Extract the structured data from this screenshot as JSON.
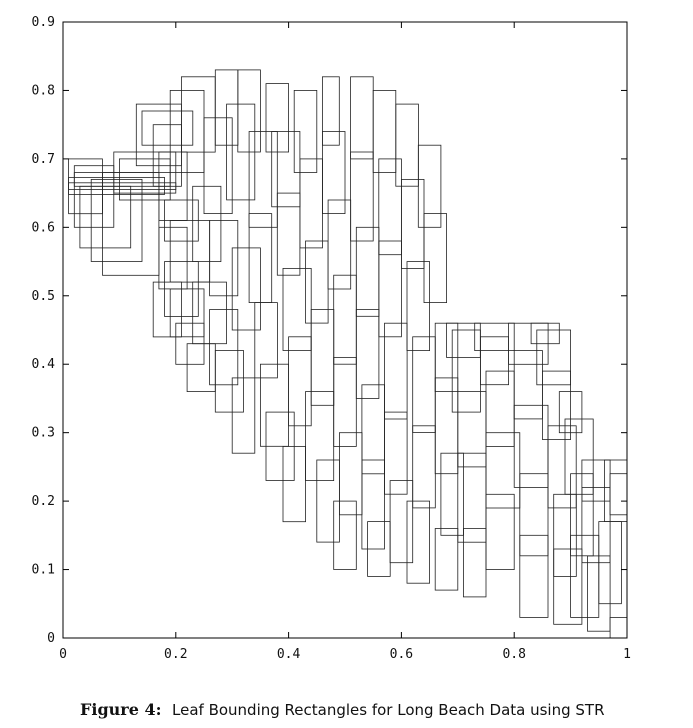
{
  "chart_data": {
    "type": "rectangles",
    "xlim": [
      0,
      1
    ],
    "ylim": [
      0,
      0.9
    ],
    "x_ticks": [
      "0",
      "0.2",
      "0.4",
      "0.6",
      "0.8",
      "1"
    ],
    "y_ticks": [
      "0",
      "0.1",
      "0.2",
      "0.3",
      "0.4",
      "0.5",
      "0.6",
      "0.7",
      "0.8",
      "0.9"
    ],
    "grid": false,
    "caption_label": "Figure 4:",
    "caption_text": "Leaf Bounding Rectangles for Long Beach Data using STR",
    "rect_fields": [
      "x0",
      "y0",
      "x1",
      "y1"
    ],
    "rectangles": [
      [
        0.01,
        0.62,
        0.07,
        0.7
      ],
      [
        0.02,
        0.6,
        0.09,
        0.69
      ],
      [
        0.03,
        0.57,
        0.12,
        0.66
      ],
      [
        0.05,
        0.55,
        0.14,
        0.67
      ],
      [
        0.07,
        0.53,
        0.17,
        0.68
      ],
      [
        0.09,
        0.65,
        0.2,
        0.71
      ],
      [
        0.1,
        0.64,
        0.19,
        0.7
      ],
      [
        0.01,
        0.655,
        0.2,
        0.665
      ],
      [
        0.01,
        0.648,
        0.18,
        0.673
      ],
      [
        0.02,
        0.66,
        0.19,
        0.68
      ],
      [
        0.13,
        0.69,
        0.21,
        0.78
      ],
      [
        0.14,
        0.72,
        0.23,
        0.77
      ],
      [
        0.16,
        0.66,
        0.21,
        0.75
      ],
      [
        0.17,
        0.61,
        0.22,
        0.71
      ],
      [
        0.19,
        0.68,
        0.25,
        0.8
      ],
      [
        0.21,
        0.71,
        0.27,
        0.82
      ],
      [
        0.18,
        0.58,
        0.24,
        0.64
      ],
      [
        0.17,
        0.51,
        0.22,
        0.6
      ],
      [
        0.18,
        0.47,
        0.24,
        0.55
      ],
      [
        0.19,
        0.44,
        0.25,
        0.51
      ],
      [
        0.2,
        0.4,
        0.25,
        0.46
      ],
      [
        0.22,
        0.36,
        0.27,
        0.43
      ],
      [
        0.16,
        0.44,
        0.21,
        0.52
      ],
      [
        0.19,
        0.52,
        0.26,
        0.61
      ],
      [
        0.23,
        0.55,
        0.28,
        0.66
      ],
      [
        0.23,
        0.43,
        0.29,
        0.52
      ],
      [
        0.26,
        0.37,
        0.31,
        0.48
      ],
      [
        0.25,
        0.62,
        0.3,
        0.76
      ],
      [
        0.27,
        0.72,
        0.31,
        0.83
      ],
      [
        0.29,
        0.64,
        0.34,
        0.78
      ],
      [
        0.26,
        0.5,
        0.31,
        0.61
      ],
      [
        0.3,
        0.45,
        0.35,
        0.57
      ],
      [
        0.27,
        0.33,
        0.32,
        0.42
      ],
      [
        0.3,
        0.27,
        0.34,
        0.38
      ],
      [
        0.31,
        0.71,
        0.35,
        0.83
      ],
      [
        0.33,
        0.6,
        0.38,
        0.74
      ],
      [
        0.33,
        0.49,
        0.37,
        0.62
      ],
      [
        0.34,
        0.38,
        0.38,
        0.49
      ],
      [
        0.35,
        0.28,
        0.4,
        0.4
      ],
      [
        0.36,
        0.23,
        0.41,
        0.33
      ],
      [
        0.36,
        0.71,
        0.4,
        0.81
      ],
      [
        0.37,
        0.63,
        0.42,
        0.74
      ],
      [
        0.38,
        0.53,
        0.42,
        0.65
      ],
      [
        0.39,
        0.42,
        0.44,
        0.54
      ],
      [
        0.4,
        0.31,
        0.44,
        0.44
      ],
      [
        0.39,
        0.17,
        0.43,
        0.28
      ],
      [
        0.41,
        0.68,
        0.45,
        0.8
      ],
      [
        0.42,
        0.57,
        0.46,
        0.7
      ],
      [
        0.43,
        0.46,
        0.47,
        0.58
      ],
      [
        0.44,
        0.34,
        0.48,
        0.48
      ],
      [
        0.43,
        0.23,
        0.48,
        0.36
      ],
      [
        0.45,
        0.14,
        0.49,
        0.26
      ],
      [
        0.46,
        0.72,
        0.49,
        0.82
      ],
      [
        0.46,
        0.62,
        0.5,
        0.74
      ],
      [
        0.47,
        0.51,
        0.51,
        0.64
      ],
      [
        0.48,
        0.4,
        0.52,
        0.53
      ],
      [
        0.48,
        0.28,
        0.52,
        0.41
      ],
      [
        0.49,
        0.18,
        0.53,
        0.3
      ],
      [
        0.48,
        0.1,
        0.52,
        0.2
      ],
      [
        0.51,
        0.7,
        0.55,
        0.82
      ],
      [
        0.51,
        0.58,
        0.55,
        0.71
      ],
      [
        0.52,
        0.47,
        0.56,
        0.6
      ],
      [
        0.52,
        0.35,
        0.56,
        0.48
      ],
      [
        0.53,
        0.24,
        0.57,
        0.37
      ],
      [
        0.53,
        0.13,
        0.57,
        0.26
      ],
      [
        0.54,
        0.09,
        0.58,
        0.17
      ],
      [
        0.55,
        0.68,
        0.59,
        0.8
      ],
      [
        0.56,
        0.56,
        0.6,
        0.7
      ],
      [
        0.56,
        0.44,
        0.6,
        0.58
      ],
      [
        0.57,
        0.32,
        0.61,
        0.46
      ],
      [
        0.57,
        0.21,
        0.61,
        0.33
      ],
      [
        0.58,
        0.11,
        0.62,
        0.23
      ],
      [
        0.59,
        0.66,
        0.63,
        0.78
      ],
      [
        0.6,
        0.54,
        0.64,
        0.67
      ],
      [
        0.61,
        0.42,
        0.65,
        0.55
      ],
      [
        0.62,
        0.3,
        0.66,
        0.44
      ],
      [
        0.62,
        0.19,
        0.66,
        0.31
      ],
      [
        0.61,
        0.08,
        0.65,
        0.2
      ],
      [
        0.63,
        0.6,
        0.67,
        0.72
      ],
      [
        0.64,
        0.49,
        0.68,
        0.62
      ],
      [
        0.66,
        0.36,
        0.7,
        0.46
      ],
      [
        0.66,
        0.24,
        0.7,
        0.38
      ],
      [
        0.67,
        0.15,
        0.71,
        0.27
      ],
      [
        0.66,
        0.07,
        0.7,
        0.16
      ],
      [
        0.68,
        0.41,
        0.74,
        0.46
      ],
      [
        0.69,
        0.33,
        0.74,
        0.45
      ],
      [
        0.7,
        0.25,
        0.75,
        0.36
      ],
      [
        0.7,
        0.14,
        0.75,
        0.27
      ],
      [
        0.71,
        0.06,
        0.75,
        0.16
      ],
      [
        0.73,
        0.42,
        0.8,
        0.46
      ],
      [
        0.74,
        0.37,
        0.79,
        0.44
      ],
      [
        0.75,
        0.28,
        0.8,
        0.39
      ],
      [
        0.75,
        0.19,
        0.81,
        0.3
      ],
      [
        0.75,
        0.1,
        0.8,
        0.21
      ],
      [
        0.79,
        0.4,
        0.86,
        0.46
      ],
      [
        0.8,
        0.32,
        0.85,
        0.42
      ],
      [
        0.8,
        0.22,
        0.86,
        0.34
      ],
      [
        0.81,
        0.12,
        0.86,
        0.24
      ],
      [
        0.81,
        0.03,
        0.86,
        0.15
      ],
      [
        0.84,
        0.37,
        0.9,
        0.45
      ],
      [
        0.85,
        0.29,
        0.9,
        0.39
      ],
      [
        0.86,
        0.19,
        0.91,
        0.31
      ],
      [
        0.87,
        0.09,
        0.91,
        0.21
      ],
      [
        0.87,
        0.02,
        0.92,
        0.13
      ],
      [
        0.88,
        0.3,
        0.92,
        0.36
      ],
      [
        0.89,
        0.21,
        0.94,
        0.32
      ],
      [
        0.9,
        0.12,
        0.94,
        0.24
      ],
      [
        0.9,
        0.03,
        0.95,
        0.15
      ],
      [
        0.92,
        0.2,
        0.97,
        0.26
      ],
      [
        0.92,
        0.11,
        0.97,
        0.22
      ],
      [
        0.93,
        0.01,
        0.97,
        0.12
      ],
      [
        0.96,
        0.17,
        1.0,
        0.26
      ],
      [
        0.95,
        0.05,
        0.99,
        0.17
      ],
      [
        0.97,
        0.18,
        1.0,
        0.24
      ],
      [
        0.97,
        0.0,
        1.0,
        0.03
      ],
      [
        0.83,
        0.43,
        0.88,
        0.46
      ]
    ]
  }
}
